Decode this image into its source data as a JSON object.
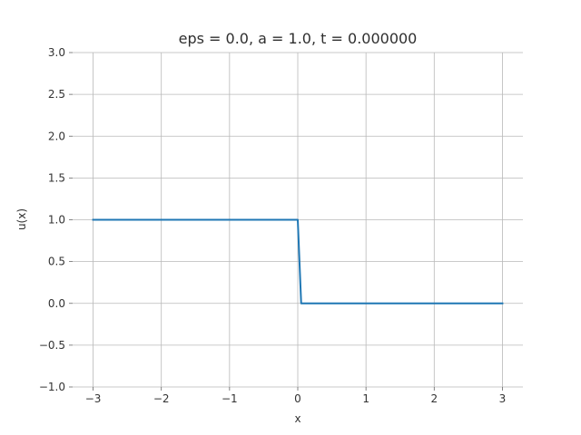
{
  "chart_data": {
    "type": "line",
    "title": "eps = 0.0, a = 1.0, t = 0.000000",
    "xlabel": "x",
    "ylabel": "u(x)",
    "xlim": [
      -3.3,
      3.3
    ],
    "ylim": [
      -1.0,
      3.0
    ],
    "grid": true,
    "x_ticks": [
      -3,
      -2,
      -1,
      0,
      1,
      2,
      3
    ],
    "x_tick_labels": [
      "−3",
      "−2",
      "−1",
      "0",
      "1",
      "2",
      "3"
    ],
    "y_ticks": [
      -1.0,
      -0.5,
      0.0,
      0.5,
      1.0,
      1.5,
      2.0,
      2.5,
      3.0
    ],
    "y_tick_labels": [
      "−1.0",
      "−0.5",
      "0.0",
      "0.5",
      "1.0",
      "1.5",
      "2.0",
      "2.5",
      "3.0"
    ],
    "series": [
      {
        "color": "#1f77b4",
        "x": [
          -3.0,
          0.0,
          0.05,
          3.0
        ],
        "y": [
          1.0,
          1.0,
          0.0,
          0.0
        ]
      }
    ]
  }
}
